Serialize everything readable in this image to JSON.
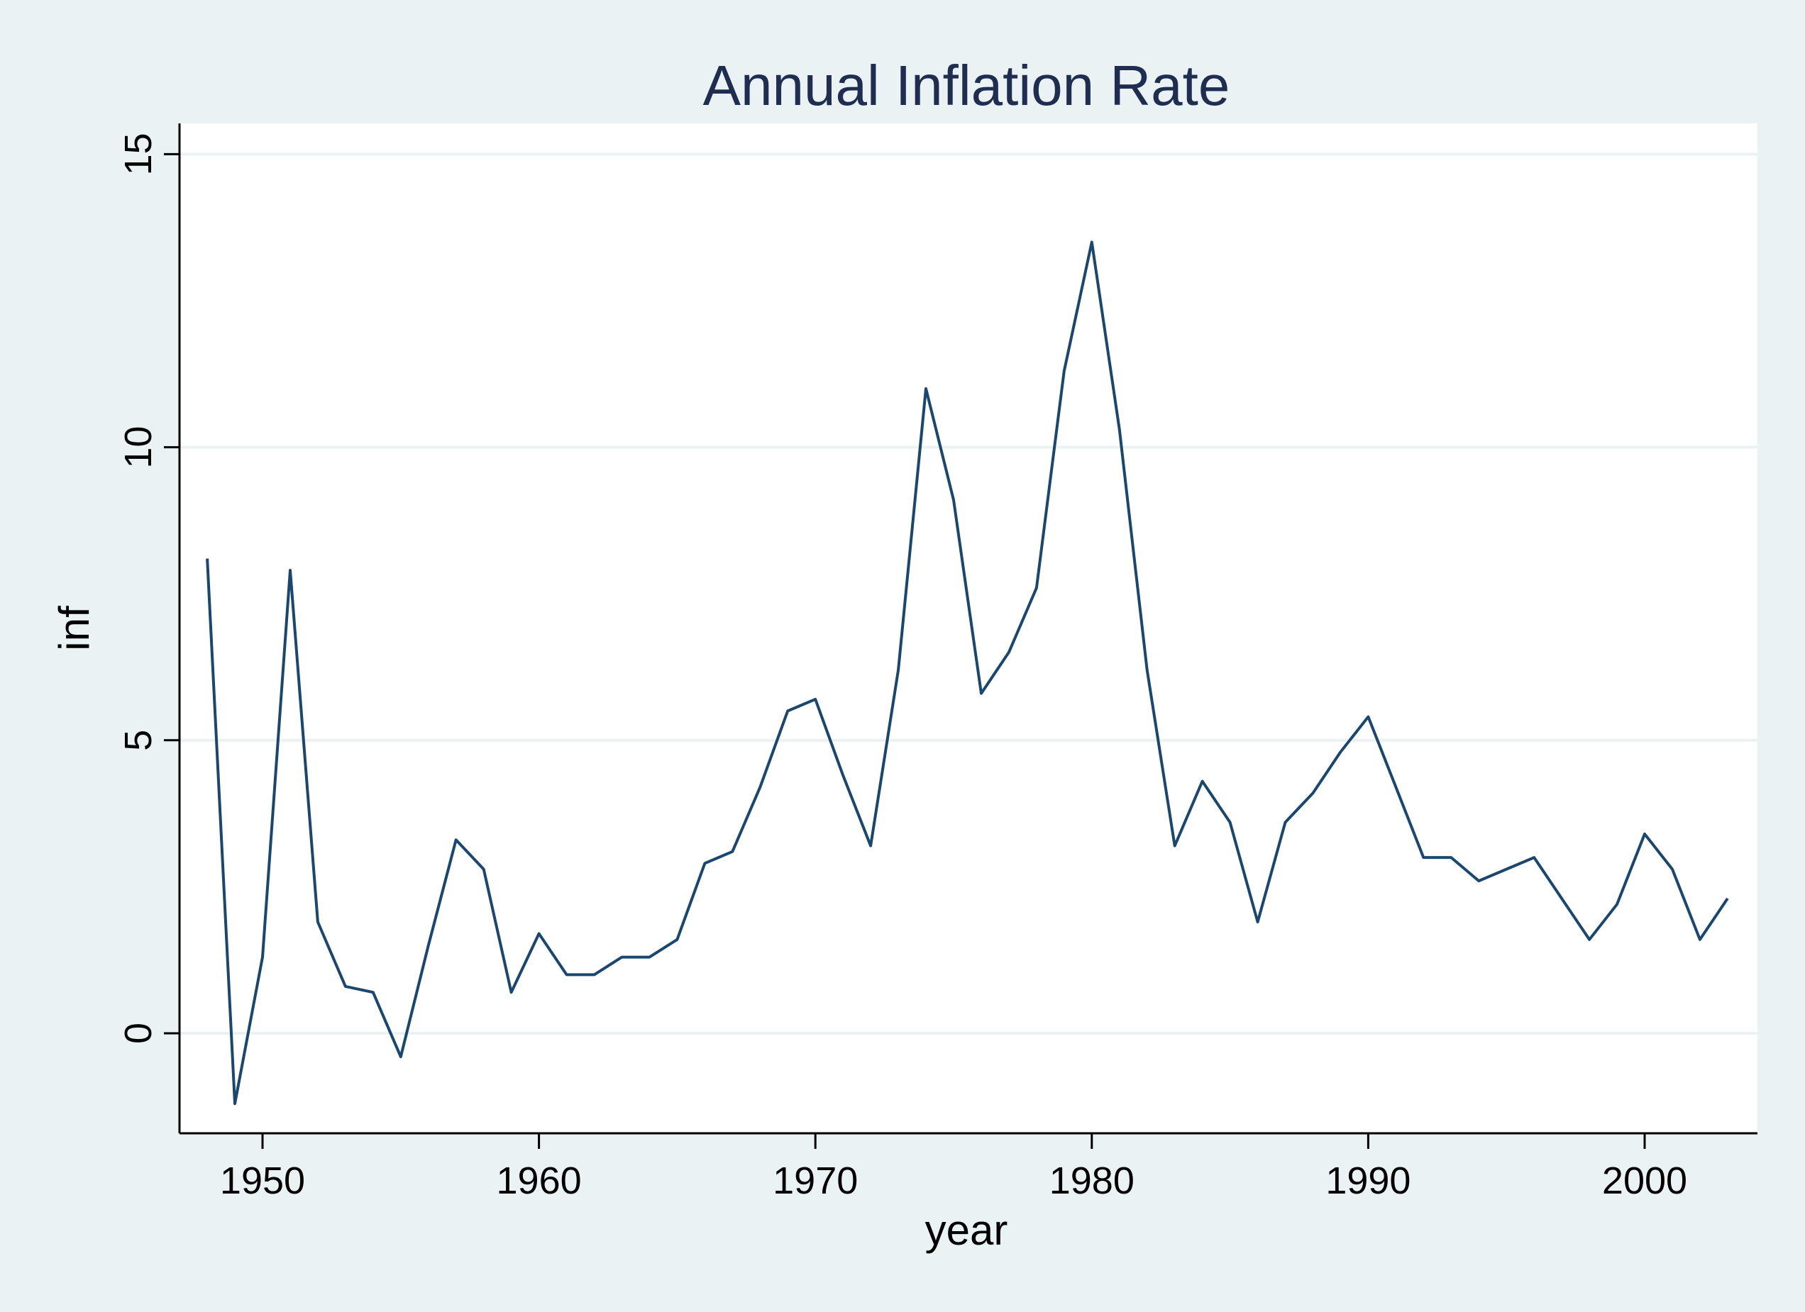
{
  "chart_data": {
    "type": "line",
    "title": "Annual Inflation Rate",
    "xlabel": "year",
    "ylabel": "inf",
    "xlim": [
      1947,
      2004
    ],
    "ylim": [
      -1.7,
      15.5
    ],
    "xticks": [
      1950,
      1960,
      1970,
      1980,
      1990,
      2000
    ],
    "yticks": [
      0,
      5,
      10,
      15
    ],
    "grid": "horizontal",
    "colors": {
      "line": "#1a476f",
      "background": "#eaf2f3",
      "plot": "#ffffff",
      "grid": "#eaf2f3",
      "title": "#1e2d50"
    },
    "x": [
      1948,
      1949,
      1950,
      1951,
      1952,
      1953,
      1954,
      1955,
      1956,
      1957,
      1958,
      1959,
      1960,
      1961,
      1962,
      1963,
      1964,
      1965,
      1966,
      1967,
      1968,
      1969,
      1970,
      1971,
      1972,
      1973,
      1974,
      1975,
      1976,
      1977,
      1978,
      1979,
      1980,
      1981,
      1982,
      1983,
      1984,
      1985,
      1986,
      1987,
      1988,
      1989,
      1990,
      1991,
      1992,
      1993,
      1994,
      1995,
      1996,
      1997,
      1998,
      1999,
      2000,
      2001,
      2002,
      2003
    ],
    "y": [
      8.1,
      -1.2,
      1.3,
      7.9,
      1.9,
      0.8,
      0.7,
      -0.4,
      1.5,
      3.3,
      2.8,
      0.7,
      1.7,
      1.0,
      1.0,
      1.3,
      1.3,
      1.6,
      2.9,
      3.1,
      4.2,
      5.5,
      5.7,
      4.4,
      3.2,
      6.2,
      11.0,
      9.1,
      5.8,
      6.5,
      7.6,
      11.3,
      13.5,
      10.3,
      6.2,
      3.2,
      4.3,
      3.6,
      1.9,
      3.6,
      4.1,
      4.8,
      5.4,
      4.2,
      3.0,
      3.0,
      2.6,
      2.8,
      3.0,
      2.3,
      1.6,
      2.2,
      3.4,
      2.8,
      1.6,
      2.3
    ]
  }
}
